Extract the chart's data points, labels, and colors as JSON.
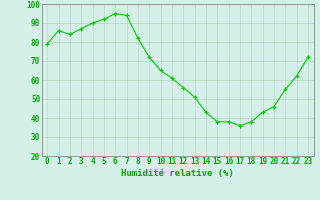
{
  "x": [
    0,
    1,
    2,
    3,
    4,
    5,
    6,
    7,
    8,
    9,
    10,
    11,
    12,
    13,
    14,
    15,
    16,
    17,
    18,
    19,
    20,
    21,
    22,
    23
  ],
  "y": [
    79,
    86,
    84,
    87,
    90,
    92,
    95,
    94,
    82,
    72,
    65,
    61,
    56,
    51,
    43,
    38,
    38,
    36,
    38,
    43,
    46,
    55,
    62,
    72
  ],
  "line_color": "#00cc00",
  "marker_color": "#00cc00",
  "bg_color": "#d4f0e8",
  "grid_color": "#aaccaa",
  "axis_color": "#00aa00",
  "tick_color": "#00aa00",
  "xlabel": "Humidité relative (%)",
  "xlabel_fontsize": 6.5,
  "tick_fontsize": 5.5,
  "ylim": [
    20,
    100
  ],
  "xlim": [
    -0.5,
    23.5
  ],
  "yticks": [
    20,
    30,
    40,
    50,
    60,
    70,
    80,
    90,
    100
  ]
}
